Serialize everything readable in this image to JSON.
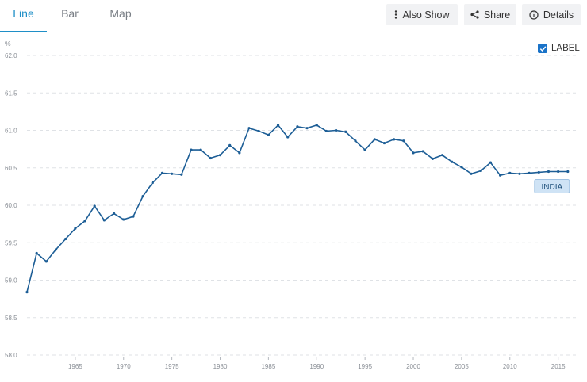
{
  "tabs": [
    {
      "label": "Line",
      "active": true
    },
    {
      "label": "Bar",
      "active": false
    },
    {
      "label": "Map",
      "active": false
    }
  ],
  "actions": {
    "also_show": {
      "label": "Also Show",
      "icon": "vertical-dots-icon"
    },
    "share": {
      "label": "Share",
      "icon": "share-icon"
    },
    "details": {
      "label": "Details",
      "icon": "info-icon"
    }
  },
  "label_toggle": {
    "label": "LABEL",
    "checked": true
  },
  "colors": {
    "accent": "#1f8fc7",
    "line": "#1d5e96",
    "checkbox": "#1a73c8",
    "series_label_bg": "#cfe3f5"
  },
  "chart_data": {
    "type": "line",
    "title": "",
    "xlabel": "",
    "ylabel": "%",
    "ylim": [
      58.0,
      62.0
    ],
    "yticks": [
      "62.0",
      "61.5",
      "61.0",
      "60.5",
      "60.0",
      "59.5",
      "59.0",
      "58.5",
      "58.0"
    ],
    "xlim": [
      1960,
      2017
    ],
    "xticks": [
      "1965",
      "1970",
      "1975",
      "1980",
      "1985",
      "1990",
      "1995",
      "2000",
      "2005",
      "2010",
      "2015"
    ],
    "grid": true,
    "series": [
      {
        "name": "INDIA",
        "x": [
          1960,
          1961,
          1962,
          1963,
          1964,
          1965,
          1966,
          1967,
          1968,
          1969,
          1970,
          1971,
          1972,
          1973,
          1974,
          1975,
          1976,
          1977,
          1978,
          1979,
          1980,
          1981,
          1982,
          1983,
          1984,
          1985,
          1986,
          1987,
          1988,
          1989,
          1990,
          1991,
          1992,
          1993,
          1994,
          1995,
          1996,
          1997,
          1998,
          1999,
          2000,
          2001,
          2002,
          2003,
          2004,
          2005,
          2006,
          2007,
          2008,
          2009,
          2010,
          2011,
          2012,
          2013,
          2014,
          2015,
          2016
        ],
        "values": [
          58.84,
          59.36,
          59.25,
          59.41,
          59.55,
          59.69,
          59.79,
          59.99,
          59.8,
          59.89,
          59.81,
          59.85,
          60.12,
          60.3,
          60.43,
          60.42,
          60.41,
          60.74,
          60.74,
          60.63,
          60.67,
          60.8,
          60.7,
          61.03,
          60.99,
          60.94,
          61.07,
          60.91,
          61.05,
          61.03,
          61.07,
          60.99,
          61.0,
          60.98,
          60.86,
          60.74,
          60.88,
          60.83,
          60.88,
          60.86,
          60.7,
          60.72,
          60.62,
          60.67,
          60.58,
          60.51,
          60.42,
          60.46,
          60.57,
          60.4,
          60.43,
          60.42,
          60.43,
          60.44,
          60.45,
          60.45,
          60.45
        ]
      }
    ]
  }
}
